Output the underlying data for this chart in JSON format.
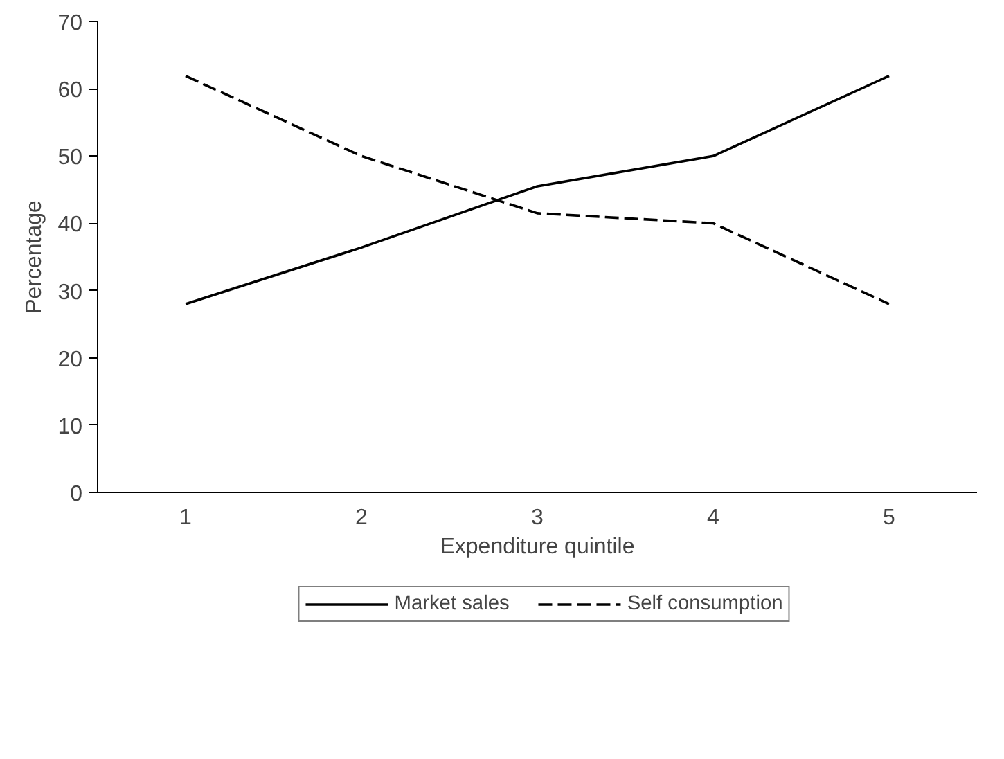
{
  "chart_data": {
    "type": "line",
    "xlabel": "Expenditure quintile",
    "ylabel": "Percentage",
    "categories": [
      "1",
      "2",
      "3",
      "4",
      "5"
    ],
    "series": [
      {
        "name": "Market sales",
        "color": "#000000",
        "values": [
          28,
          36.4,
          45.5,
          50,
          61.9
        ],
        "line_style": "solid"
      },
      {
        "name": "Self consumption",
        "color": "#000000",
        "values": [
          61.9,
          50,
          41.5,
          40,
          28
        ],
        "line_style": "dashed"
      }
    ],
    "ylim": [
      0,
      70
    ],
    "yticks": [
      0,
      10,
      20,
      30,
      40,
      50,
      60,
      70
    ],
    "grid": false,
    "legend": "bottom",
    "marker": "none"
  }
}
